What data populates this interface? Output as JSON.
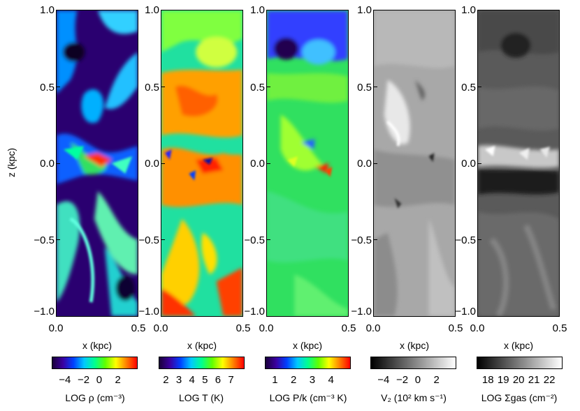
{
  "figure": {
    "y_axis_label": "z (kpc)",
    "panels": [
      {
        "id": "density",
        "x_label": "x (kpc)",
        "x_ticks": [
          "0.0",
          "0.5"
        ],
        "y_ticks": [
          "1.0",
          "0.5",
          "0.0",
          "−0.5",
          "−1.0"
        ],
        "colorbar": {
          "label": "LOG ρ (cm⁻³)",
          "ticks": [
            "−4",
            "−2",
            "0",
            "2"
          ],
          "colormap": "rainbow"
        }
      },
      {
        "id": "temperature",
        "x_label": "x (kpc)",
        "x_ticks": [
          "0.0",
          "0.5"
        ],
        "y_ticks": [
          "1.0",
          "0.5",
          "0.0",
          "−0.5",
          "−1.0"
        ],
        "colorbar": {
          "label": "LOG T (K)",
          "ticks": [
            "2",
            "3",
            "4",
            "5",
            "6",
            "7"
          ],
          "colormap": "rainbow"
        }
      },
      {
        "id": "pressure",
        "x_label": "x (kpc)",
        "x_ticks": [
          "0.0",
          "0.5"
        ],
        "y_ticks": [
          "1.0",
          "0.5",
          "0.0",
          "−0.5",
          "−1.0"
        ],
        "colorbar": {
          "label": "LOG P/k (cm⁻³ K)",
          "ticks": [
            "1",
            "2",
            "3",
            "4"
          ],
          "colormap": "rainbow"
        }
      },
      {
        "id": "velocity",
        "x_label": "x (kpc)",
        "x_ticks": [
          "0.0",
          "0.5"
        ],
        "y_ticks": [
          "1.0",
          "0.5",
          "0.0",
          "−0.5",
          "−1.0"
        ],
        "colorbar": {
          "label": "V₂ (10² km s⁻¹)",
          "ticks": [
            "−4",
            "−2",
            "0",
            "2"
          ],
          "colormap": "grayscale"
        }
      },
      {
        "id": "column-density",
        "x_label": "x (kpc)",
        "x_ticks": [
          "0.0",
          "0.5"
        ],
        "y_ticks": [
          "1.0",
          "0.5",
          "0.0",
          "−0.5",
          "−1.0"
        ],
        "colorbar": {
          "label": "LOG Σgas (cm⁻²)",
          "ticks": [
            "18",
            "19",
            "20",
            "21",
            "22"
          ],
          "colormap": "grayscale"
        }
      }
    ],
    "colors": {
      "rainbow": [
        "#1a003a",
        "#3a00a0",
        "#0040ff",
        "#00c8ff",
        "#00ff90",
        "#60ff00",
        "#ffff00",
        "#ff8000",
        "#ff0000"
      ],
      "grayscale": [
        "#000000",
        "#ffffff"
      ]
    }
  }
}
